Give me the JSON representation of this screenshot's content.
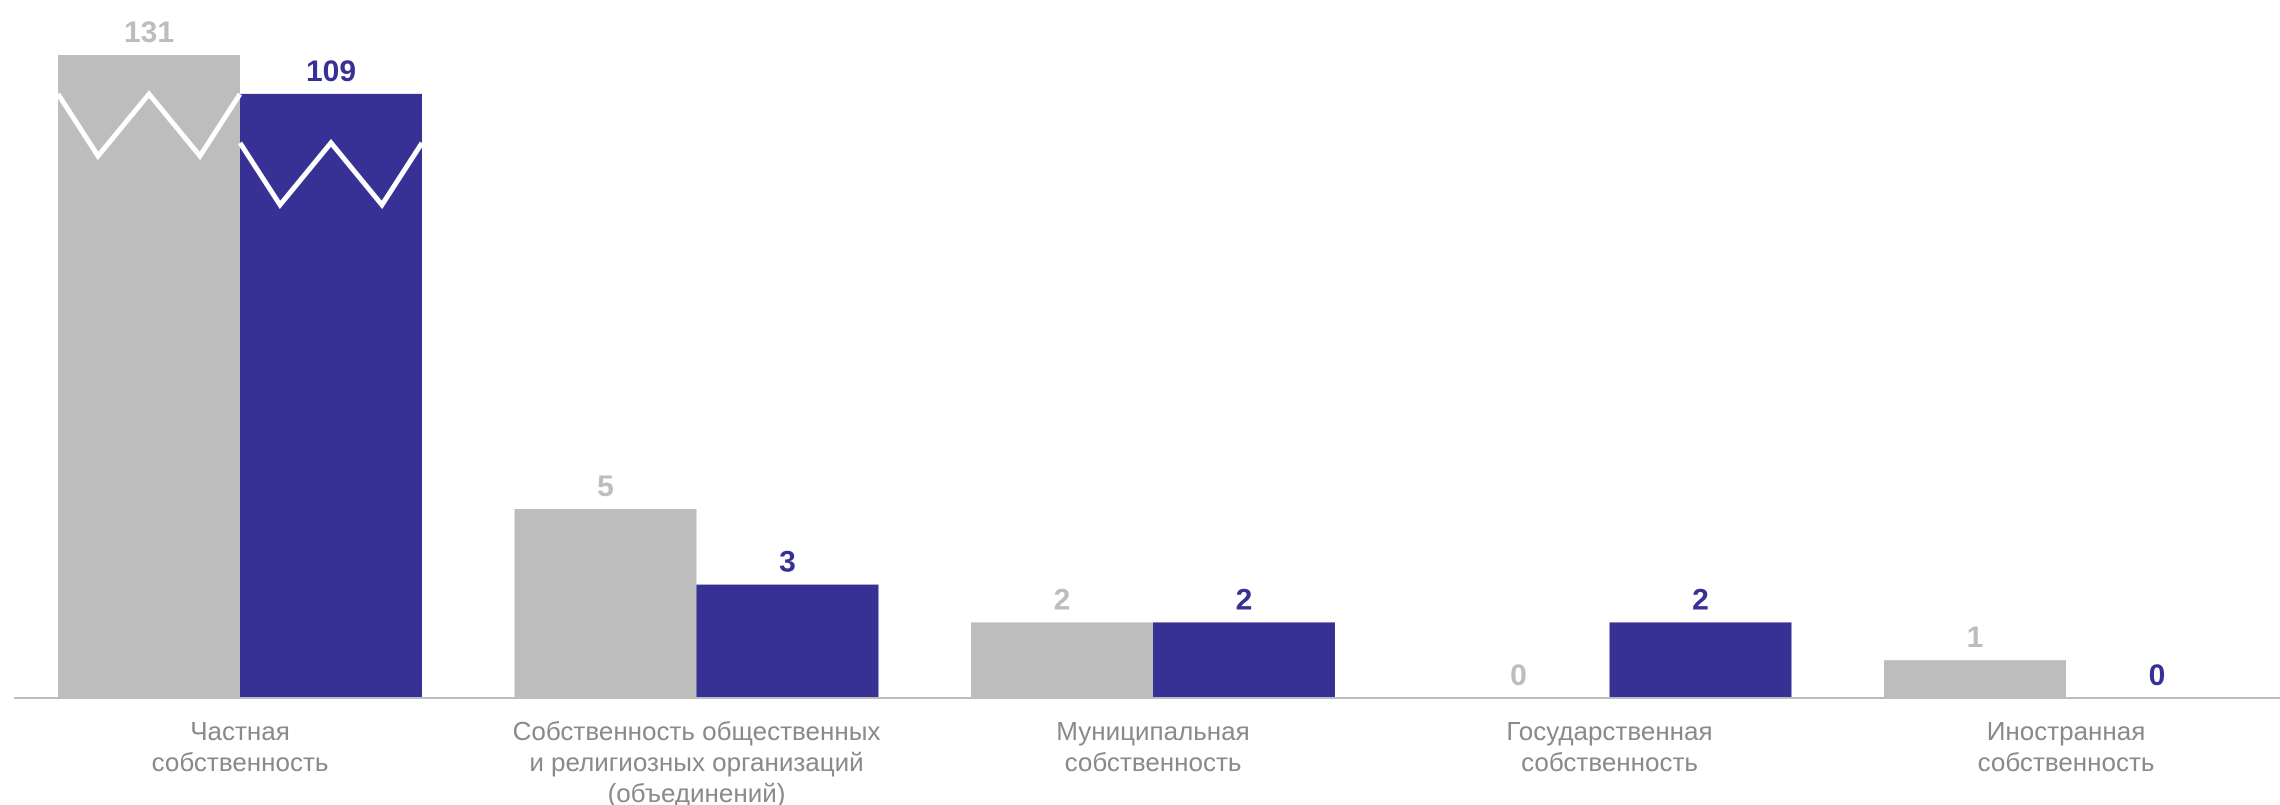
{
  "chart_data": {
    "type": "bar",
    "categories": [
      [
        "Частная",
        "собственность"
      ],
      [
        "Собственность общественных",
        "и религиозных организаций",
        "(объединений)"
      ],
      [
        "Муниципальная",
        "собственность"
      ],
      [
        "Государственная",
        "собственность"
      ],
      [
        "Иностранная",
        "собственность"
      ]
    ],
    "series": [
      {
        "values": [
          131,
          5,
          2,
          0,
          1
        ],
        "color": "#bdbdbd",
        "label_color": "#bdbdbd"
      },
      {
        "values": [
          109,
          3,
          2,
          2,
          0
        ],
        "color": "#373195",
        "label_color": "#373195"
      }
    ],
    "axis_break": {
      "category": 0,
      "style": "zigzag"
    },
    "grid": false,
    "legend": "none"
  }
}
